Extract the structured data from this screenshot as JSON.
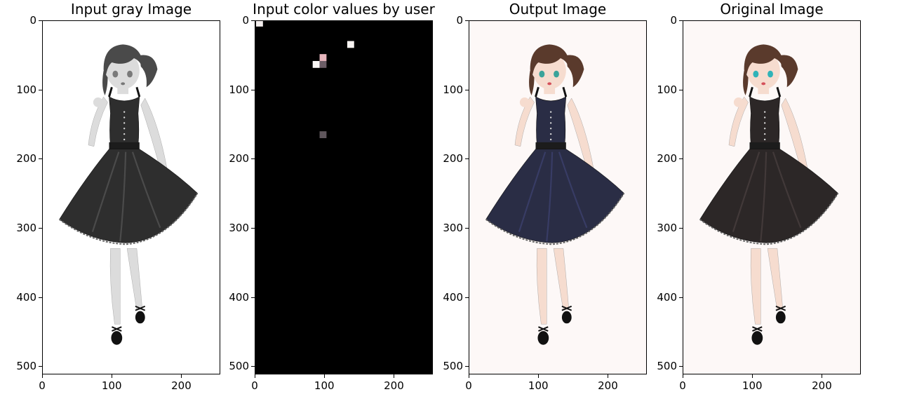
{
  "figure": {
    "panels": [
      {
        "id": "gray",
        "title": "Input gray Image"
      },
      {
        "id": "hints",
        "title": "Input color values by user"
      },
      {
        "id": "output",
        "title": "Output Image"
      },
      {
        "id": "original",
        "title": "Original Image"
      }
    ],
    "y_ticks": [
      "0",
      "100",
      "200",
      "300",
      "400",
      "500"
    ],
    "x_ticks": [
      "0",
      "100",
      "200"
    ],
    "image_height": 512,
    "image_width": 256,
    "colors": {
      "hint_background": "#000000",
      "gray_dress": "#2e2e2e",
      "output_dress": "#2a2d45",
      "original_dress": "#2c2727",
      "color_hair": "#5a3a2c",
      "gray_hair": "#4a4a4a",
      "color_skin": "#f6dccf",
      "gray_skin": "#dcdcdc"
    },
    "hint_points": [
      {
        "x": 6,
        "y": 3,
        "color": "#f4efee"
      },
      {
        "x": 138,
        "y": 34,
        "color": "#f8f4f2"
      },
      {
        "x": 88,
        "y": 63,
        "color": "#faf7f6"
      },
      {
        "x": 98,
        "y": 53,
        "color": "#e6b6bd"
      },
      {
        "x": 98,
        "y": 63,
        "color": "#6c5d66"
      },
      {
        "x": 98,
        "y": 165,
        "color": "#5f565c"
      }
    ]
  }
}
